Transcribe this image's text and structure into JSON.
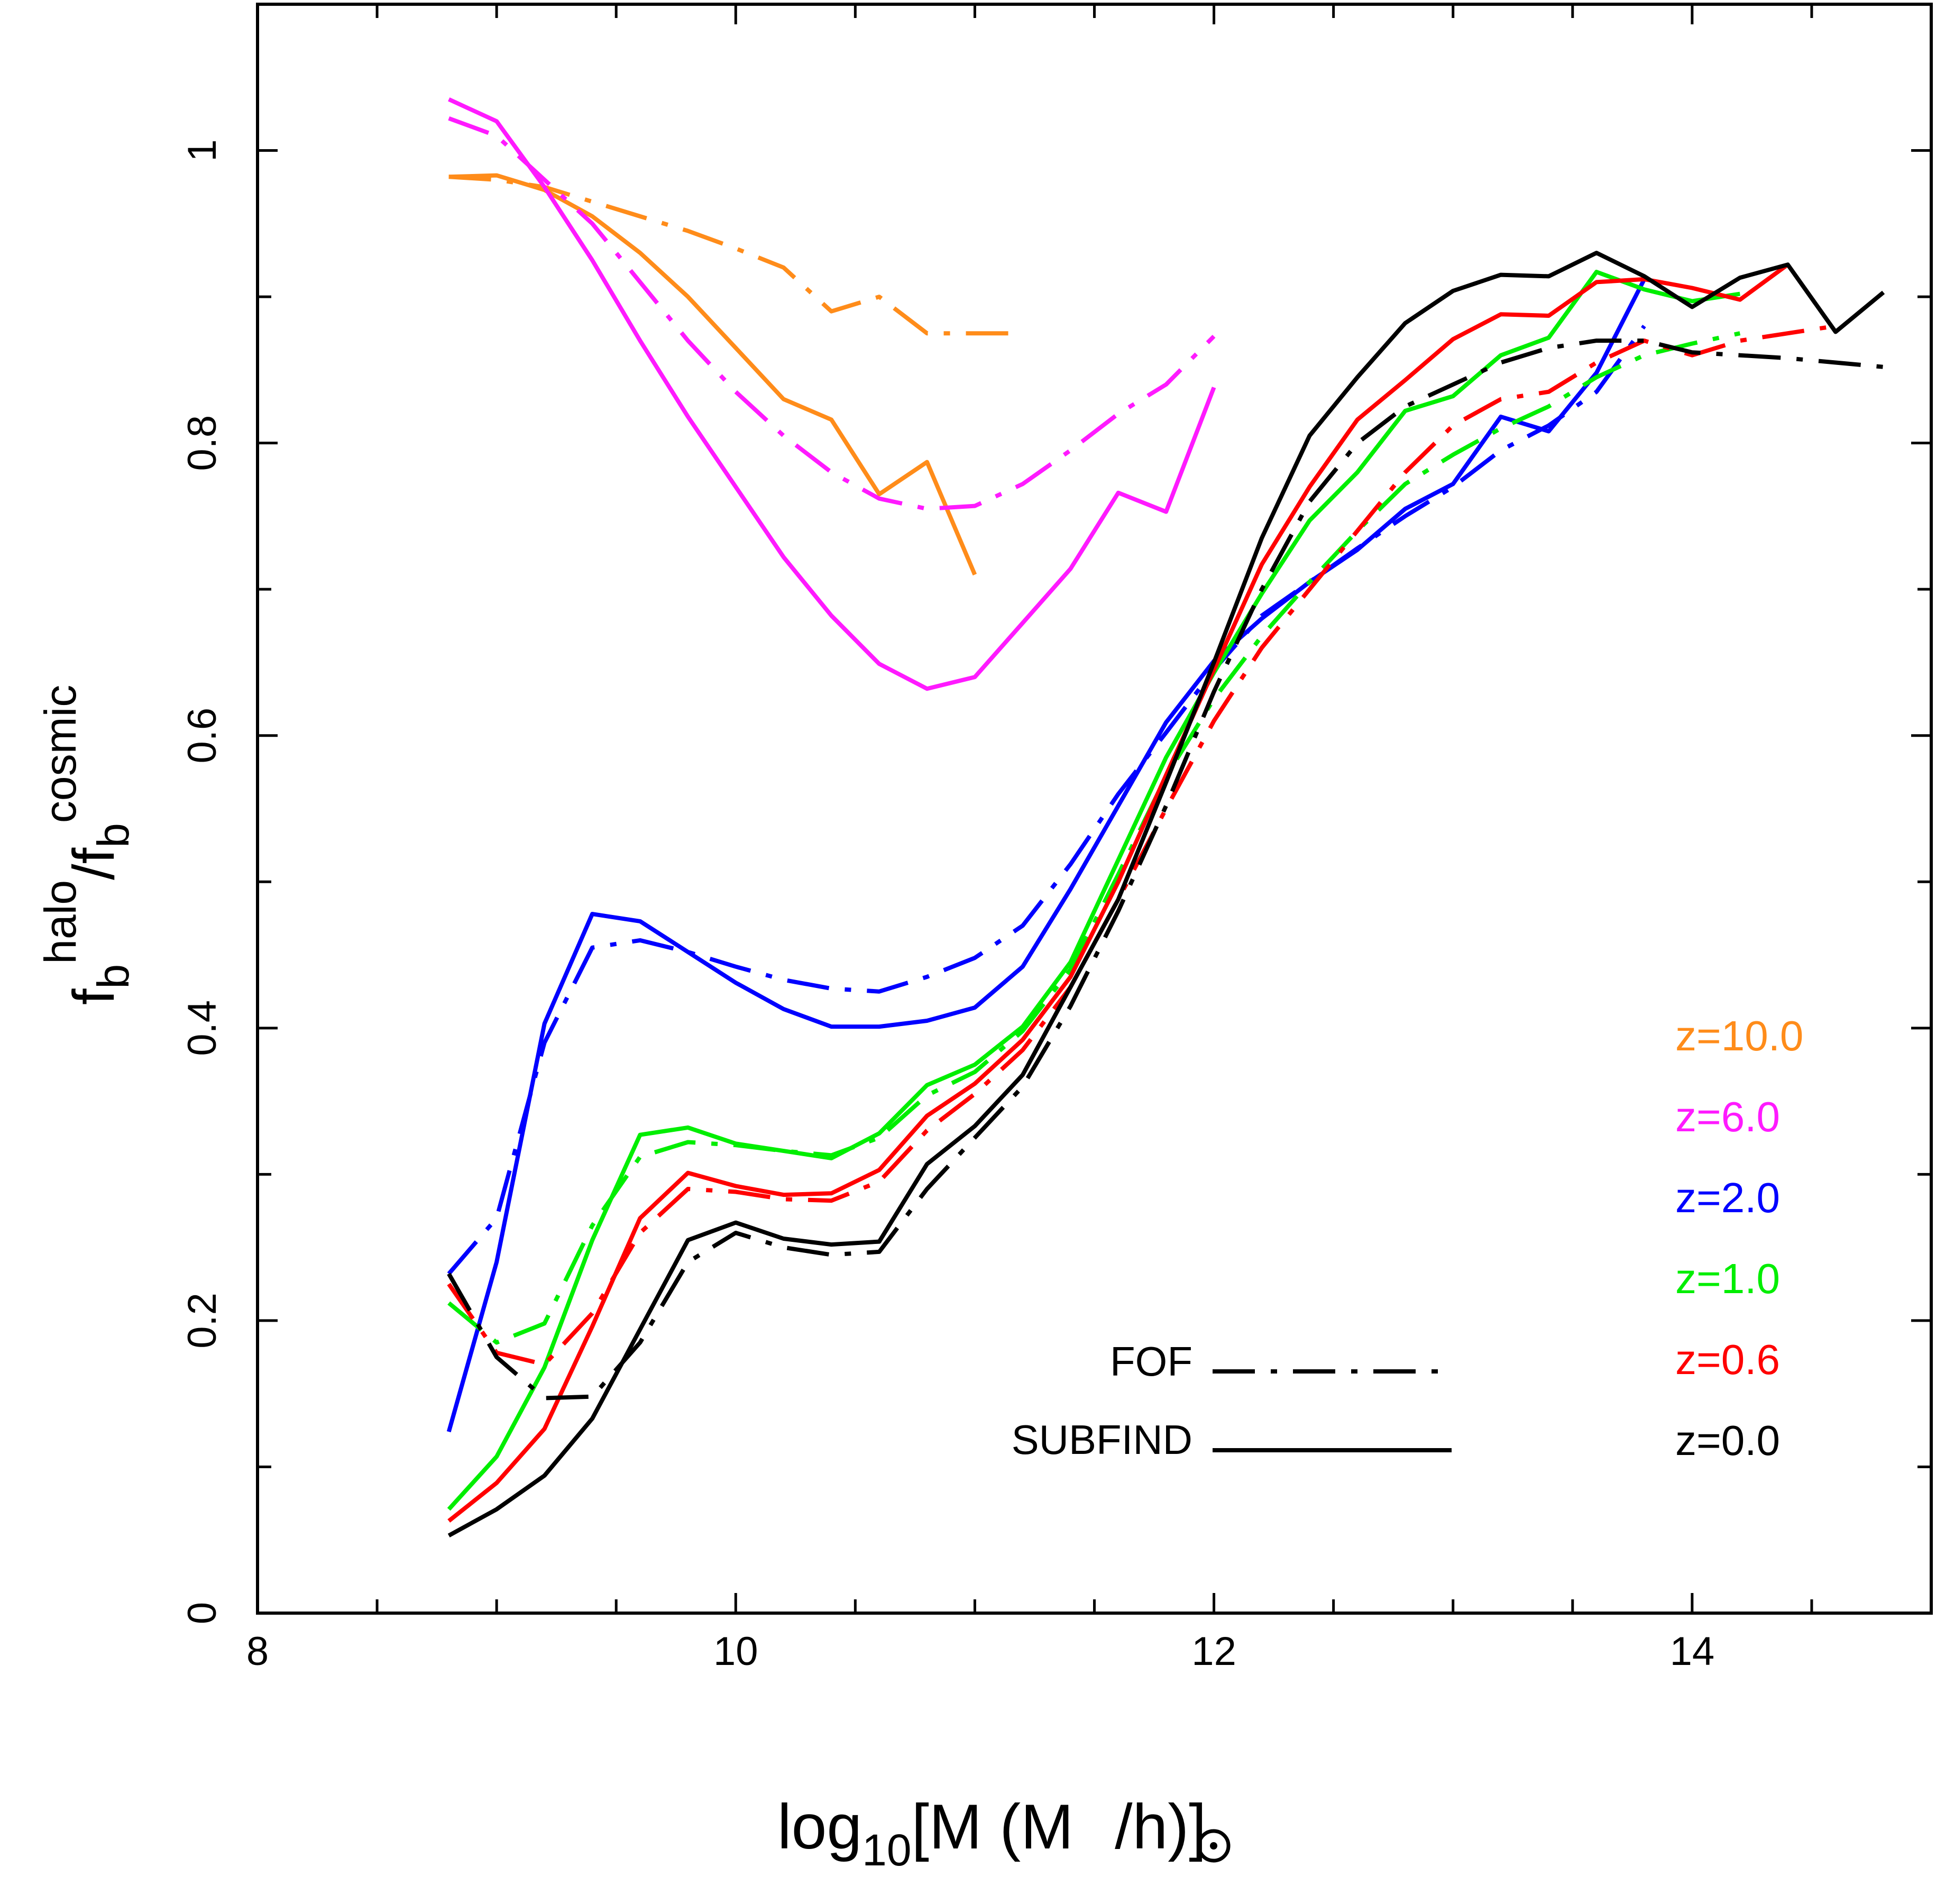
{
  "chart_data": {
    "type": "line",
    "xlabel": {
      "pre": "log",
      "sub1": "10",
      "mid": "[M   (M",
      "post": "/h)]"
    },
    "ylabel": {
      "a": "f",
      "a_sub": "b",
      "a_sup": "halo",
      "slash": "/",
      "b": "f",
      "b_sub": "b",
      "b_sup": "cosmic"
    },
    "xlim": [
      8,
      15
    ],
    "ylim": [
      0,
      1.1
    ],
    "xticks": [
      8,
      10,
      12,
      14
    ],
    "xtick_labels": [
      "8",
      "10",
      "12",
      "14"
    ],
    "yticks": [
      0,
      0.2,
      0.4,
      0.6,
      0.8,
      1.0
    ],
    "ytick_labels": [
      "0",
      "0.2",
      "0.4",
      "0.6",
      "0.8",
      "1"
    ],
    "grid": false,
    "legend_style": [
      {
        "label": "FOF",
        "dash": "dashdot"
      },
      {
        "label": "SUBFIND",
        "dash": "solid"
      }
    ],
    "legend_redshift": [
      {
        "label": "z=10.0",
        "color": "#ff8c1a"
      },
      {
        "label": "z=6.0",
        "color": "#ff1aff"
      },
      {
        "label": "z=2.0",
        "color": "#0000ff"
      },
      {
        "label": "z=1.0",
        "color": "#00ee00"
      },
      {
        "label": "z=0.6",
        "color": "#ff0000"
      },
      {
        "label": "z=0.0",
        "color": "#000000"
      }
    ],
    "series": [
      {
        "z": "10.0",
        "finder": "SUBFIND",
        "color": "#ff8c1a",
        "x": [
          8.8,
          9.0,
          9.2,
          9.4,
          9.6,
          9.8,
          10.0,
          10.2,
          10.4,
          10.6,
          10.8,
          11.0
        ],
        "y": [
          0.982,
          0.983,
          0.973,
          0.955,
          0.93,
          0.9,
          0.865,
          0.83,
          0.816,
          0.765,
          0.787,
          0.71
        ]
      },
      {
        "z": "10.0",
        "finder": "FOF",
        "color": "#ff8c1a",
        "x": [
          8.8,
          9.0,
          9.2,
          9.4,
          9.6,
          9.8,
          10.0,
          10.2,
          10.4,
          10.6,
          10.8,
          11.0,
          11.2
        ],
        "y": [
          0.982,
          0.98,
          0.975,
          0.965,
          0.955,
          0.945,
          0.933,
          0.92,
          0.89,
          0.9,
          0.875,
          0.875,
          0.875
        ]
      },
      {
        "z": "6.0",
        "finder": "SUBFIND",
        "color": "#ff1aff",
        "x": [
          8.8,
          9.0,
          9.2,
          9.4,
          9.6,
          9.8,
          10.0,
          10.2,
          10.4,
          10.6,
          10.8,
          11.0,
          11.2,
          11.4,
          11.6,
          11.8,
          12.0
        ],
        "y": [
          1.035,
          1.02,
          0.975,
          0.925,
          0.87,
          0.818,
          0.77,
          0.722,
          0.682,
          0.649,
          0.632,
          0.64,
          0.677,
          0.714,
          0.766,
          0.753,
          0.838
        ]
      },
      {
        "z": "6.0",
        "finder": "FOF",
        "color": "#ff1aff",
        "x": [
          8.8,
          9.0,
          9.2,
          9.4,
          9.6,
          9.8,
          10.0,
          10.2,
          10.4,
          10.6,
          10.8,
          11.0,
          11.2,
          11.4,
          11.6,
          11.8,
          12.0
        ],
        "y": [
          1.022,
          1.01,
          0.98,
          0.95,
          0.91,
          0.87,
          0.835,
          0.805,
          0.78,
          0.762,
          0.755,
          0.757,
          0.772,
          0.795,
          0.82,
          0.84,
          0.873
        ]
      },
      {
        "z": "2.0",
        "finder": "SUBFIND",
        "color": "#0000ff",
        "x": [
          8.8,
          9.0,
          9.2,
          9.4,
          9.6,
          9.8,
          10.0,
          10.2,
          10.4,
          10.6,
          10.8,
          11.0,
          11.2,
          11.4,
          11.6,
          11.8,
          12.0,
          12.2,
          12.4,
          12.6,
          12.8,
          13.0,
          13.2,
          13.4,
          13.6,
          13.8
        ],
        "y": [
          0.124,
          0.24,
          0.403,
          0.478,
          0.473,
          0.452,
          0.431,
          0.413,
          0.401,
          0.401,
          0.405,
          0.414,
          0.442,
          0.495,
          0.552,
          0.609,
          0.651,
          0.68,
          0.705,
          0.727,
          0.755,
          0.772,
          0.818,
          0.808,
          0.848,
          0.912
        ]
      },
      {
        "z": "2.0",
        "finder": "FOF",
        "color": "#0000ff",
        "x": [
          8.8,
          9.0,
          9.2,
          9.4,
          9.6,
          9.8,
          10.0,
          10.2,
          10.4,
          10.6,
          10.8,
          11.0,
          11.2,
          11.4,
          11.6,
          11.8,
          12.0,
          12.2,
          12.4,
          12.6,
          12.8,
          13.0,
          13.2,
          13.4,
          13.6,
          13.8
        ],
        "y": [
          0.232,
          0.27,
          0.39,
          0.455,
          0.46,
          0.452,
          0.442,
          0.433,
          0.427,
          0.425,
          0.435,
          0.448,
          0.47,
          0.512,
          0.56,
          0.602,
          0.645,
          0.682,
          0.705,
          0.728,
          0.75,
          0.77,
          0.795,
          0.812,
          0.835,
          0.88
        ]
      },
      {
        "z": "1.0",
        "finder": "SUBFIND",
        "color": "#00ee00",
        "x": [
          8.8,
          9.0,
          9.2,
          9.4,
          9.6,
          9.8,
          10.0,
          10.2,
          10.4,
          10.6,
          10.8,
          11.0,
          11.2,
          11.4,
          11.6,
          11.8,
          12.0,
          12.2,
          12.4,
          12.6,
          12.8,
          13.0,
          13.2,
          13.4,
          13.6,
          13.8,
          14.0,
          14.2
        ],
        "y": [
          0.071,
          0.107,
          0.168,
          0.255,
          0.327,
          0.332,
          0.321,
          0.316,
          0.311,
          0.328,
          0.361,
          0.375,
          0.401,
          0.445,
          0.515,
          0.585,
          0.643,
          0.697,
          0.747,
          0.78,
          0.822,
          0.832,
          0.86,
          0.872,
          0.917,
          0.905,
          0.897,
          0.902
        ]
      },
      {
        "z": "1.0",
        "finder": "FOF",
        "color": "#00ee00",
        "x": [
          8.8,
          9.0,
          9.2,
          9.4,
          9.6,
          9.8,
          10.0,
          10.2,
          10.4,
          10.6,
          10.8,
          11.0,
          11.2,
          11.4,
          11.6,
          11.8,
          12.0,
          12.2,
          12.4,
          12.6,
          12.8,
          13.0,
          13.2,
          13.4,
          13.6,
          13.8,
          14.0,
          14.2
        ],
        "y": [
          0.212,
          0.185,
          0.198,
          0.265,
          0.312,
          0.322,
          0.32,
          0.316,
          0.313,
          0.325,
          0.354,
          0.37,
          0.398,
          0.44,
          0.505,
          0.572,
          0.625,
          0.668,
          0.705,
          0.74,
          0.772,
          0.792,
          0.81,
          0.825,
          0.845,
          0.86,
          0.868,
          0.875
        ]
      },
      {
        "z": "0.6",
        "finder": "SUBFIND",
        "color": "#ff0000",
        "x": [
          8.8,
          9.0,
          9.2,
          9.4,
          9.6,
          9.8,
          10.0,
          10.2,
          10.4,
          10.6,
          10.8,
          11.0,
          11.2,
          11.4,
          11.6,
          11.8,
          12.0,
          12.2,
          12.4,
          12.6,
          12.8,
          13.0,
          13.2,
          13.4,
          13.6,
          13.8,
          14.0,
          14.2,
          14.4
        ],
        "y": [
          0.063,
          0.089,
          0.126,
          0.196,
          0.27,
          0.301,
          0.292,
          0.286,
          0.287,
          0.303,
          0.34,
          0.362,
          0.392,
          0.435,
          0.5,
          0.573,
          0.645,
          0.717,
          0.77,
          0.816,
          0.843,
          0.871,
          0.888,
          0.887,
          0.91,
          0.912,
          0.906,
          0.898,
          0.922
        ]
      },
      {
        "z": "0.6",
        "finder": "FOF",
        "color": "#ff0000",
        "x": [
          8.8,
          9.0,
          9.2,
          9.4,
          9.6,
          9.8,
          10.0,
          10.2,
          10.4,
          10.6,
          10.8,
          11.0,
          11.2,
          11.4,
          11.6,
          11.8,
          12.0,
          12.2,
          12.4,
          12.6,
          12.8,
          13.0,
          13.2,
          13.4,
          13.6,
          13.8,
          14.0,
          14.2,
          14.4,
          14.6
        ],
        "y": [
          0.225,
          0.178,
          0.17,
          0.205,
          0.26,
          0.29,
          0.288,
          0.283,
          0.282,
          0.295,
          0.33,
          0.355,
          0.385,
          0.428,
          0.488,
          0.55,
          0.61,
          0.66,
          0.7,
          0.74,
          0.78,
          0.812,
          0.83,
          0.835,
          0.855,
          0.87,
          0.86,
          0.87,
          0.875,
          0.88
        ]
      },
      {
        "z": "0.0",
        "finder": "SUBFIND",
        "color": "#000000",
        "x": [
          8.8,
          9.0,
          9.2,
          9.4,
          9.6,
          9.8,
          10.0,
          10.2,
          10.4,
          10.6,
          10.8,
          11.0,
          11.2,
          11.4,
          11.6,
          11.8,
          12.0,
          12.2,
          12.4,
          12.6,
          12.8,
          13.0,
          13.2,
          13.4,
          13.6,
          13.8,
          14.0,
          14.2,
          14.4,
          14.6,
          14.8
        ],
        "y": [
          0.053,
          0.071,
          0.094,
          0.133,
          0.194,
          0.255,
          0.267,
          0.256,
          0.252,
          0.254,
          0.307,
          0.333,
          0.368,
          0.428,
          0.488,
          0.568,
          0.65,
          0.735,
          0.805,
          0.845,
          0.882,
          0.904,
          0.915,
          0.914,
          0.93,
          0.914,
          0.893,
          0.913,
          0.922,
          0.876,
          0.903
        ]
      },
      {
        "z": "0.0",
        "finder": "FOF",
        "color": "#000000",
        "x": [
          8.8,
          9.0,
          9.2,
          9.4,
          9.6,
          9.8,
          10.0,
          10.2,
          10.4,
          10.6,
          10.8,
          11.0,
          11.2,
          11.4,
          11.6,
          11.8,
          12.0,
          12.2,
          12.4,
          12.6,
          12.8,
          13.0,
          13.2,
          13.4,
          13.6,
          13.8,
          14.0,
          14.2,
          14.4,
          14.6,
          14.8
        ],
        "y": [
          0.232,
          0.175,
          0.147,
          0.148,
          0.185,
          0.24,
          0.26,
          0.25,
          0.245,
          0.247,
          0.29,
          0.325,
          0.36,
          0.415,
          0.48,
          0.552,
          0.63,
          0.7,
          0.76,
          0.8,
          0.825,
          0.84,
          0.855,
          0.865,
          0.87,
          0.87,
          0.862,
          0.86,
          0.858,
          0.855,
          0.852
        ]
      }
    ]
  }
}
